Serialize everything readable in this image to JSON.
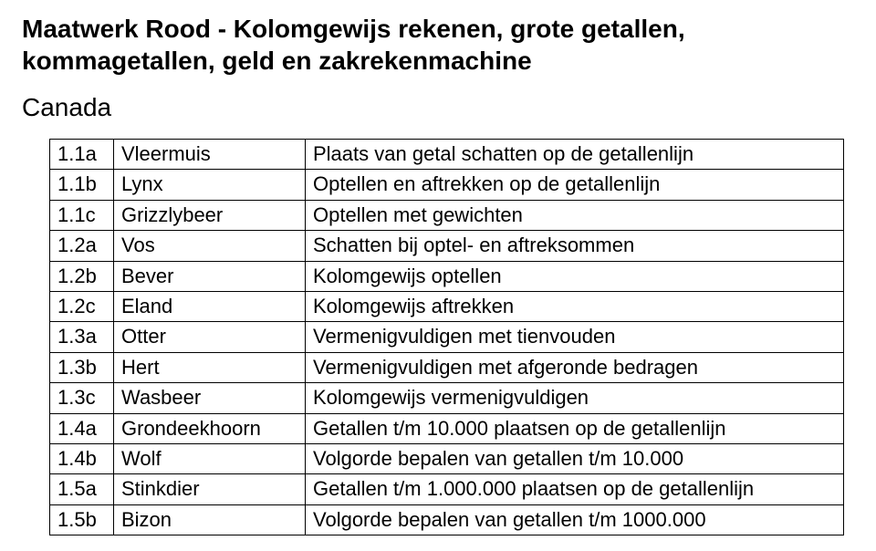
{
  "title_line1": "Maatwerk Rood - Kolomgewijs rekenen, grote getallen,",
  "title_line2": "kommagetallen, geld en zakrekenmachine",
  "subtitle": "Canada",
  "rows": [
    {
      "code": "1.1a",
      "name": "Vleermuis",
      "desc": "Plaats van getal schatten op de getallenlijn"
    },
    {
      "code": "1.1b",
      "name": "Lynx",
      "desc": "Optellen en aftrekken op de getallenlijn"
    },
    {
      "code": "1.1c",
      "name": "Grizzlybeer",
      "desc": "Optellen met gewichten"
    },
    {
      "code": "1.2a",
      "name": "Vos",
      "desc": "Schatten bij optel- en aftreksommen"
    },
    {
      "code": "1.2b",
      "name": "Bever",
      "desc": "Kolomgewijs optellen"
    },
    {
      "code": "1.2c",
      "name": "Eland",
      "desc": "Kolomgewijs aftrekken"
    },
    {
      "code": "1.3a",
      "name": "Otter",
      "desc": "Vermenigvuldigen met tienvouden"
    },
    {
      "code": "1.3b",
      "name": "Hert",
      "desc": "Vermenigvuldigen met afgeronde bedragen"
    },
    {
      "code": "1.3c",
      "name": "Wasbeer",
      "desc": "Kolomgewijs vermenigvuldigen"
    },
    {
      "code": "1.4a",
      "name": "Grondeekhoorn",
      "desc": "Getallen t/m 10.000 plaatsen op de getallenlijn"
    },
    {
      "code": "1.4b",
      "name": "Wolf",
      "desc": "Volgorde bepalen van getallen t/m 10.000"
    },
    {
      "code": "1.5a",
      "name": "Stinkdier",
      "desc": "Getallen t/m 1.000.000 plaatsen op de getallenlijn"
    },
    {
      "code": "1.5b",
      "name": "Bizon",
      "desc": "Volgorde bepalen van getallen t/m 1000.000"
    }
  ]
}
